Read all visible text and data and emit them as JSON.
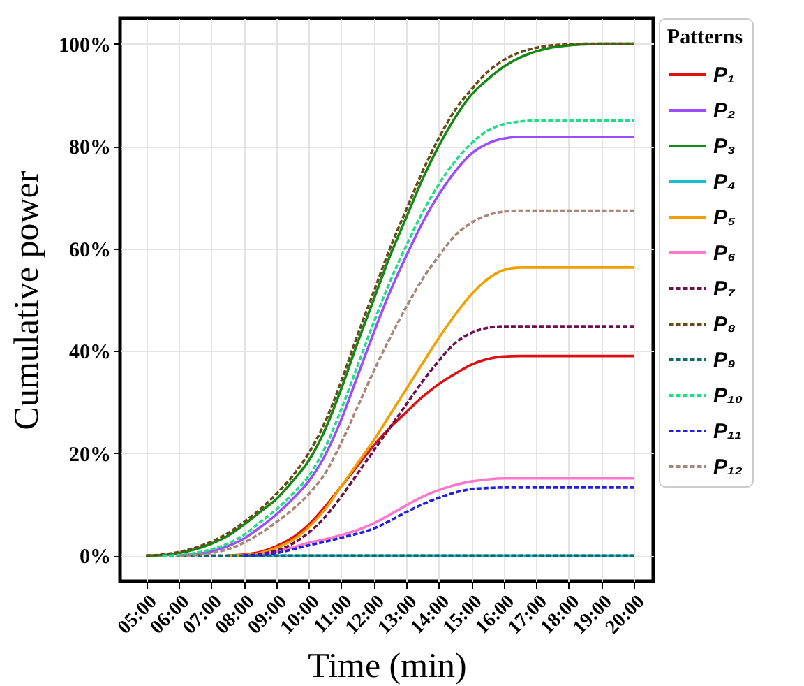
{
  "chart_data": {
    "type": "line",
    "xlabel": "Time (min)",
    "ylabel": "Cumulative power",
    "legend_title": "Patterns",
    "legend": "right",
    "grid": true,
    "marker": "none",
    "x": [
      5,
      5.5,
      6,
      6.5,
      7,
      7.5,
      8,
      8.5,
      9,
      9.5,
      10,
      10.5,
      11,
      11.5,
      12,
      12.5,
      13,
      13.5,
      14,
      14.5,
      15,
      15.5,
      16,
      16.5,
      17,
      17.5,
      18,
      18.5,
      19,
      19.5,
      20
    ],
    "xlim": [
      4.2,
      20.6
    ],
    "xticks": [
      {
        "value": 5,
        "label": "05:00"
      },
      {
        "value": 6,
        "label": "06:00"
      },
      {
        "value": 7,
        "label": "07:00"
      },
      {
        "value": 8,
        "label": "08:00"
      },
      {
        "value": 9,
        "label": "09:00"
      },
      {
        "value": 10,
        "label": "10:00"
      },
      {
        "value": 11,
        "label": "11:00"
      },
      {
        "value": 12,
        "label": "12:00"
      },
      {
        "value": 13,
        "label": "13:00"
      },
      {
        "value": 14,
        "label": "14:00"
      },
      {
        "value": 15,
        "label": "15:00"
      },
      {
        "value": 16,
        "label": "16:00"
      },
      {
        "value": 17,
        "label": "17:00"
      },
      {
        "value": 18,
        "label": "18:00"
      },
      {
        "value": 19,
        "label": "19:00"
      },
      {
        "value": 20,
        "label": "20:00"
      }
    ],
    "ylim": [
      -5,
      105
    ],
    "yticks": [
      {
        "value": 0,
        "label": "0%"
      },
      {
        "value": 20,
        "label": "20%"
      },
      {
        "value": 40,
        "label": "40%"
      },
      {
        "value": 60,
        "label": "60%"
      },
      {
        "value": 80,
        "label": "80%"
      },
      {
        "value": 100,
        "label": "100%"
      }
    ],
    "series": [
      {
        "name": "P₁",
        "color": "#dd1111",
        "line_style": "solid",
        "values": [
          null,
          null,
          null,
          null,
          null,
          0,
          0.2,
          0.7,
          1.8,
          3.5,
          6,
          9.5,
          13.5,
          17.5,
          21.5,
          25,
          28,
          31,
          33.5,
          35.5,
          37.3,
          38.4,
          38.9,
          39,
          39,
          39,
          39,
          39,
          39,
          39,
          39
        ]
      },
      {
        "name": "P₂",
        "color": "#9b4dff",
        "line_style": "solid",
        "values": [
          null,
          null,
          0,
          0.3,
          0.8,
          1.8,
          3.3,
          5.5,
          8,
          11,
          14.5,
          19.5,
          26.5,
          35,
          43.5,
          51.5,
          58.5,
          65,
          70.5,
          75,
          78.5,
          80.5,
          81.5,
          81.8,
          81.8,
          81.8,
          81.8,
          81.8,
          81.8,
          81.8,
          81.8
        ]
      },
      {
        "name": "P₃",
        "color": "#138a13",
        "line_style": "solid",
        "values": [
          0,
          0.1,
          0.5,
          1.2,
          2.3,
          3.8,
          6,
          8.5,
          11,
          14.5,
          18.5,
          24.5,
          32.5,
          41.5,
          50,
          58.5,
          66,
          73.5,
          80,
          85.5,
          90,
          93,
          95.5,
          97.3,
          98.5,
          99.3,
          99.7,
          99.9,
          100,
          100,
          100
        ]
      },
      {
        "name": "P₄",
        "color": "#17becf",
        "line_style": "solid",
        "values": [
          null,
          null,
          null,
          null,
          null,
          0,
          0,
          0,
          0,
          0,
          0,
          0,
          0,
          0,
          0,
          0,
          0,
          0,
          0,
          0,
          0,
          0,
          0,
          0,
          0,
          0,
          0,
          0,
          0,
          0,
          0
        ]
      },
      {
        "name": "P₅",
        "color": "#f0a000",
        "line_style": "solid",
        "values": [
          null,
          null,
          null,
          null,
          null,
          0,
          0.1,
          0.5,
          1.5,
          3,
          5.5,
          9,
          13.5,
          18,
          22.5,
          27.5,
          32.5,
          37.5,
          42.5,
          47,
          51,
          54,
          55.8,
          56.3,
          56.3,
          56.3,
          56.3,
          56.3,
          56.3,
          56.3,
          56.3
        ]
      },
      {
        "name": "P₆",
        "color": "#ff77cc",
        "line_style": "solid",
        "values": [
          null,
          null,
          null,
          null,
          null,
          null,
          0,
          0.2,
          0.8,
          1.6,
          2.5,
          3.2,
          4,
          5,
          6.3,
          8,
          9.8,
          11.5,
          12.8,
          13.8,
          14.5,
          14.9,
          15.1,
          15.1,
          15.1,
          15.1,
          15.1,
          15.1,
          15.1,
          15.1,
          15.1
        ]
      },
      {
        "name": "P₇",
        "color": "#6b0f4f",
        "line_style": "dashed",
        "values": [
          null,
          null,
          null,
          null,
          null,
          null,
          0,
          0.3,
          1,
          2.3,
          4.5,
          7.5,
          11.5,
          16,
          20.5,
          25,
          29.5,
          34,
          38,
          41.5,
          43.5,
          44.5,
          44.8,
          44.8,
          44.8,
          44.8,
          44.8,
          44.8,
          44.8,
          44.8,
          44.8
        ]
      },
      {
        "name": "P₈",
        "color": "#6b4a1a",
        "line_style": "dashed",
        "values": [
          0,
          0.2,
          0.7,
          1.5,
          2.7,
          4.3,
          6.5,
          9,
          12,
          15.5,
          20,
          26,
          34,
          43,
          51.5,
          60,
          67.5,
          75,
          81.5,
          87,
          91,
          94.5,
          96.8,
          98.3,
          99.2,
          99.7,
          99.9,
          100,
          100,
          100,
          100
        ]
      },
      {
        "name": "P₉",
        "color": "#0f6b6b",
        "line_style": "dashed",
        "values": [
          null,
          0,
          0,
          0,
          0,
          0,
          0,
          0,
          0,
          0,
          0,
          0,
          0,
          0,
          0,
          0,
          0,
          0,
          0,
          0,
          0,
          0,
          0,
          0,
          0,
          0,
          0,
          0,
          0,
          0,
          0
        ]
      },
      {
        "name": "P₁₀",
        "color": "#22dd88",
        "line_style": "dashed",
        "values": [
          null,
          0,
          0.1,
          0.5,
          1.2,
          2.3,
          4,
          6.5,
          9,
          12,
          15.5,
          21,
          28.5,
          37,
          45.5,
          53.5,
          60.5,
          67,
          72.5,
          77,
          80.5,
          83,
          84.3,
          84.8,
          85,
          85,
          85,
          85,
          85,
          85,
          85
        ]
      },
      {
        "name": "P₁₁",
        "color": "#1f1fdd",
        "line_style": "dashed",
        "values": [
          null,
          null,
          null,
          null,
          null,
          null,
          0,
          0.1,
          0.5,
          1.2,
          2,
          2.7,
          3.5,
          4.3,
          5.3,
          6.8,
          8.5,
          10,
          11.3,
          12.3,
          13,
          13.2,
          13.3,
          13.3,
          13.3,
          13.3,
          13.3,
          13.3,
          13.3,
          13.3,
          13.3
        ]
      },
      {
        "name": "P₁₂",
        "color": "#a8877a",
        "line_style": "dashed",
        "values": [
          null,
          null,
          0,
          0.1,
          0.5,
          1.2,
          2.5,
          4.3,
          6.5,
          9,
          12,
          16,
          22,
          29,
          36,
          42.5,
          48.5,
          54,
          58.5,
          62.5,
          65,
          66.5,
          67.2,
          67.4,
          67.4,
          67.4,
          67.4,
          67.4,
          67.4,
          67.4,
          67.4
        ]
      }
    ]
  }
}
